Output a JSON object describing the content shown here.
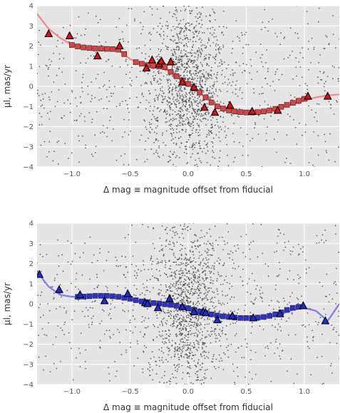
{
  "chart_data": [
    {
      "type": "scatter",
      "panel": "top",
      "xlabel": "Δ mag ≡ magnitude offset from fiducial",
      "ylabel": "μl, mas/yr",
      "xlim": [
        -1.3,
        1.3
      ],
      "ylim": [
        -4,
        4
      ],
      "xticks": [
        -1.0,
        -0.5,
        0.0,
        0.5,
        1.0
      ],
      "xtick_labels": [
        "−1.0",
        "−0.5",
        "0.0",
        "0.5",
        "1.0"
      ],
      "yticks": [
        -4,
        -3,
        -2,
        -1,
        0,
        1,
        2,
        3,
        4
      ],
      "ytick_labels": [
        "−4",
        "−3",
        "−2",
        "−1",
        "0",
        "1",
        "2",
        "3",
        "4"
      ],
      "grid": true,
      "background": "#e5e5e5",
      "series": [
        {
          "role": "stars",
          "marker": "dot",
          "color": "#333333",
          "count": 1800,
          "description": "individual star proper motions, concentrated near Δmag=0"
        },
        {
          "role": "fit-curve",
          "marker": "line",
          "color": "#f08080",
          "x": [
            -1.3,
            -1.2,
            -1.1,
            -1.0,
            -0.9,
            -0.8,
            -0.7,
            -0.6,
            -0.5,
            -0.4,
            -0.3,
            -0.2,
            -0.1,
            0.0,
            0.1,
            0.2,
            0.3,
            0.4,
            0.5,
            0.6,
            0.7,
            0.8,
            0.9,
            1.0,
            1.1,
            1.2,
            1.3
          ],
          "y": [
            3.6,
            2.85,
            2.4,
            2.05,
            1.92,
            1.87,
            1.85,
            1.8,
            1.35,
            1.1,
            1.0,
            0.85,
            0.55,
            0.1,
            -0.35,
            -0.75,
            -1.05,
            -1.2,
            -1.3,
            -1.28,
            -1.2,
            -1.05,
            -0.9,
            -0.72,
            -0.55,
            -0.45,
            -0.4
          ]
        },
        {
          "role": "binned-medians",
          "marker": "square",
          "color": "#e04040",
          "x": [
            -1.0,
            -0.95,
            -0.9,
            -0.85,
            -0.8,
            -0.75,
            -0.7,
            -0.65,
            -0.6,
            -0.55,
            -0.45,
            -0.4,
            -0.35,
            -0.3,
            -0.25,
            -0.2,
            -0.15,
            -0.1,
            -0.05,
            0.0,
            0.05,
            0.1,
            0.15,
            0.2,
            0.25,
            0.3,
            0.35,
            0.4,
            0.45,
            0.5,
            0.55,
            0.6,
            0.65,
            0.7,
            0.75,
            0.8,
            0.85,
            0.9,
            0.95,
            1.0
          ],
          "y": [
            2.05,
            1.98,
            1.93,
            1.9,
            1.88,
            1.87,
            1.86,
            1.85,
            1.82,
            1.6,
            1.2,
            1.12,
            1.05,
            1.02,
            0.98,
            0.95,
            0.72,
            0.5,
            0.3,
            0.12,
            -0.1,
            -0.3,
            -0.55,
            -0.8,
            -1.0,
            -1.1,
            -1.2,
            -1.25,
            -1.28,
            -1.3,
            -1.3,
            -1.28,
            -1.25,
            -1.2,
            -1.12,
            -1.02,
            -0.92,
            -0.82,
            -0.72,
            -0.62
          ]
        },
        {
          "role": "cluster-members",
          "marker": "triangle",
          "color": "#dd1111",
          "x": [
            -1.2,
            -1.02,
            -0.78,
            -0.59,
            -0.36,
            -0.31,
            -0.25,
            -0.23,
            -0.15,
            -0.05,
            0.05,
            0.14,
            0.23,
            0.36,
            0.55,
            0.77,
            1.03,
            1.2
          ],
          "y": [
            2.6,
            2.5,
            1.5,
            2.0,
            0.9,
            1.3,
            1.1,
            1.25,
            1.2,
            0.2,
            -0.05,
            -1.05,
            -1.3,
            -0.95,
            -1.25,
            -1.2,
            -0.5,
            -0.5
          ]
        }
      ]
    },
    {
      "type": "scatter",
      "panel": "bottom",
      "xlabel": "Δ mag ≡ magnitude offset from fiducial",
      "ylabel": "μl, mas/yr",
      "xlim": [
        -1.3,
        1.3
      ],
      "ylim": [
        -4,
        4
      ],
      "xticks": [
        -1.0,
        -0.5,
        0.0,
        0.5,
        1.0
      ],
      "xtick_labels": [
        "−1.0",
        "−0.5",
        "0.0",
        "0.5",
        "1.0"
      ],
      "yticks": [
        -4,
        -3,
        -2,
        -1,
        0,
        1,
        2,
        3,
        4
      ],
      "ytick_labels": [
        "−4",
        "−3",
        "−2",
        "−1",
        "0",
        "1",
        "2",
        "3",
        "4"
      ],
      "grid": true,
      "background": "#e5e5e5",
      "series": [
        {
          "role": "stars",
          "marker": "dot",
          "color": "#333333",
          "count": 1800,
          "description": "individual star proper motions, concentrated near Δmag=0"
        },
        {
          "role": "fit-curve",
          "marker": "line",
          "color": "#7070ee",
          "x": [
            -1.3,
            -1.2,
            -1.1,
            -1.0,
            -0.9,
            -0.8,
            -0.7,
            -0.6,
            -0.5,
            -0.4,
            -0.3,
            -0.2,
            -0.1,
            0.0,
            0.1,
            0.2,
            0.3,
            0.4,
            0.5,
            0.6,
            0.7,
            0.8,
            0.9,
            1.0,
            1.1,
            1.2,
            1.3
          ],
          "y": [
            1.6,
            0.85,
            0.45,
            0.35,
            0.38,
            0.4,
            0.4,
            0.35,
            0.25,
            0.1,
            0.0,
            -0.05,
            -0.15,
            -0.28,
            -0.42,
            -0.55,
            -0.65,
            -0.7,
            -0.7,
            -0.68,
            -0.62,
            -0.5,
            -0.3,
            -0.2,
            -0.35,
            -0.85,
            0.0
          ]
        },
        {
          "role": "binned-medians",
          "marker": "square",
          "color": "#3030d0",
          "x": [
            -0.95,
            -0.9,
            -0.85,
            -0.8,
            -0.75,
            -0.7,
            -0.65,
            -0.6,
            -0.55,
            -0.5,
            -0.45,
            -0.4,
            -0.35,
            -0.3,
            -0.25,
            -0.2,
            -0.15,
            -0.1,
            -0.05,
            0.0,
            0.05,
            0.1,
            0.15,
            0.2,
            0.25,
            0.3,
            0.35,
            0.4,
            0.45,
            0.5,
            0.55,
            0.6,
            0.65,
            0.7,
            0.75,
            0.8,
            0.85,
            0.9,
            0.95
          ],
          "y": [
            0.35,
            0.36,
            0.38,
            0.4,
            0.4,
            0.4,
            0.38,
            0.35,
            0.3,
            0.25,
            0.18,
            0.12,
            0.08,
            0.04,
            0.02,
            -0.02,
            -0.05,
            -0.1,
            -0.15,
            -0.22,
            -0.3,
            -0.38,
            -0.45,
            -0.52,
            -0.58,
            -0.62,
            -0.65,
            -0.68,
            -0.7,
            -0.7,
            -0.7,
            -0.68,
            -0.65,
            -0.6,
            -0.52,
            -0.42,
            -0.3,
            -0.2,
            -0.15
          ]
        },
        {
          "role": "cluster-members",
          "marker": "triangle",
          "color": "#1f2ed0",
          "x": [
            -1.28,
            -1.11,
            -0.93,
            -0.72,
            -0.52,
            -0.37,
            -0.35,
            -0.26,
            -0.16,
            -0.05,
            0.05,
            0.13,
            0.15,
            0.25,
            0.38,
            0.56,
            0.79,
            0.99,
            1.18
          ],
          "y": [
            1.45,
            0.7,
            0.45,
            0.15,
            0.5,
            0.05,
            0.0,
            -0.2,
            0.25,
            -0.15,
            -0.4,
            -0.4,
            -0.45,
            -0.8,
            -0.6,
            -0.7,
            -0.5,
            -0.1,
            -0.85
          ]
        }
      ]
    }
  ]
}
